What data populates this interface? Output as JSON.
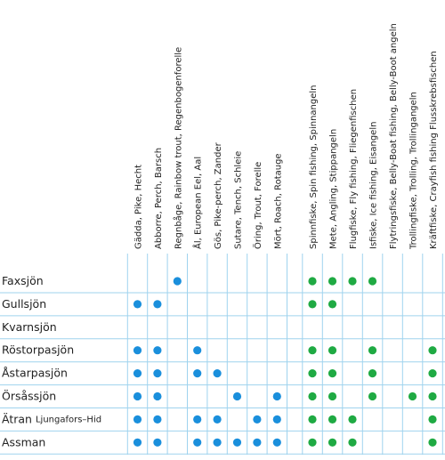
{
  "table": {
    "fish_columns": [
      "Gädda, Pike, Hecht",
      "Abborre, Perch, Barsch",
      "Regnbåge, Rainbow trout, Regenbogenforelle",
      "Ål, European Eel, Aal",
      "Gös, Pike-perch, Zander",
      "Sutare, Tench, Schleie",
      "Öring, Trout, Forelle",
      "Mört, Roach, Rotauge"
    ],
    "method_columns": [
      "Spinnfiske, Spin fishing, Spinnangeln",
      "Mete, Angling, Stippangeln",
      "Flugfiske, Fly fishing, Fliegenfischen",
      "Isfiske, Ice fishing, Eisangeln",
      "Flytringsfiske, Belly-Boat fishing, Belly-Boot angeln",
      "Trollingfiske, Trolling, Trollingangeln",
      "Kräftfiske, Crayfish fishing Flusskrebsfischen"
    ],
    "rows": [
      {
        "name": "Faxsjön",
        "fish": [
          0,
          0,
          1,
          0,
          0,
          0,
          0,
          0
        ],
        "methods": [
          1,
          1,
          1,
          1,
          0,
          0,
          0
        ]
      },
      {
        "name": "Gullsjön",
        "fish": [
          1,
          1,
          0,
          0,
          0,
          0,
          0,
          0
        ],
        "methods": [
          1,
          1,
          0,
          0,
          0,
          0,
          0
        ]
      },
      {
        "name": "Kvarnsjön",
        "fish": [
          0,
          0,
          0,
          0,
          0,
          0,
          0,
          0
        ],
        "methods": [
          0,
          0,
          0,
          0,
          0,
          0,
          0
        ]
      },
      {
        "name": "Röstorpasjön",
        "fish": [
          1,
          1,
          0,
          1,
          0,
          0,
          0,
          0
        ],
        "methods": [
          1,
          1,
          0,
          1,
          0,
          0,
          1
        ]
      },
      {
        "name": "Åstarpasjön",
        "fish": [
          1,
          1,
          0,
          1,
          1,
          0,
          0,
          0
        ],
        "methods": [
          1,
          1,
          0,
          1,
          0,
          0,
          1
        ]
      },
      {
        "name": "Örsåssjön",
        "fish": [
          1,
          1,
          0,
          0,
          0,
          1,
          0,
          1
        ],
        "methods": [
          1,
          1,
          0,
          1,
          0,
          1,
          1
        ]
      },
      {
        "name": "Ätran",
        "subname": "Ljungafors–Hid",
        "fish": [
          1,
          1,
          0,
          1,
          1,
          0,
          1,
          1
        ],
        "methods": [
          1,
          1,
          1,
          0,
          0,
          0,
          1
        ]
      },
      {
        "name": "Assman",
        "fish": [
          1,
          1,
          0,
          1,
          1,
          1,
          1,
          1
        ],
        "methods": [
          1,
          1,
          1,
          0,
          0,
          0,
          1
        ]
      }
    ]
  }
}
